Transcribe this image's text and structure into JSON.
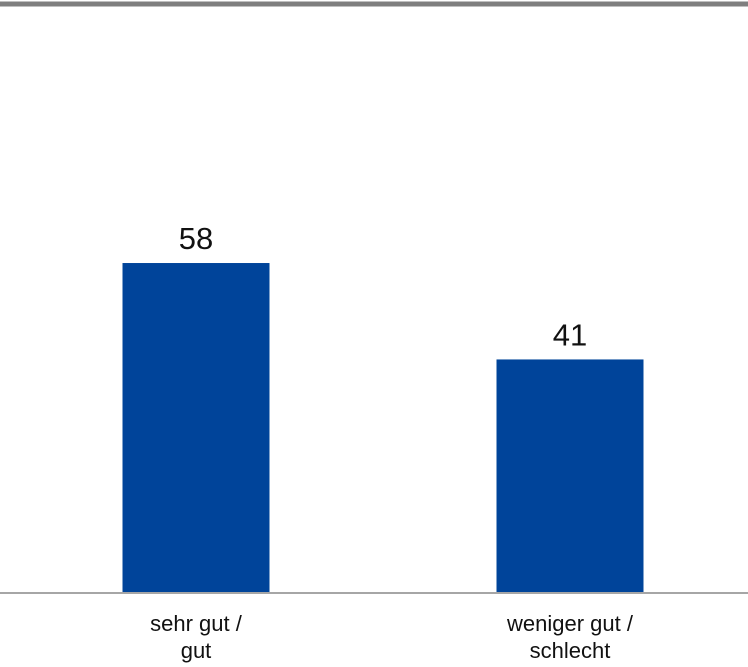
{
  "chart_data": {
    "type": "bar",
    "title": "",
    "xlabel": "",
    "ylabel": "",
    "categories": [
      [
        "sehr gut /",
        "gut"
      ],
      [
        "weniger gut /",
        "schlecht"
      ]
    ],
    "values": [
      58,
      41
    ],
    "ylim": [
      0,
      100
    ],
    "grid": false,
    "legend": "none",
    "colors": {
      "bar": "#00449A",
      "axis_line": "#A6A6A6",
      "top_rule": "#7F7F7F",
      "text": "#111111"
    }
  }
}
